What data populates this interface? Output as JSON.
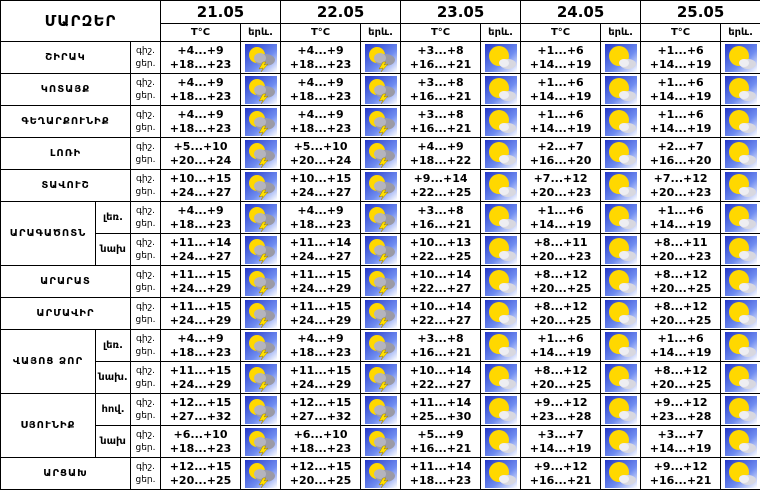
{
  "header": {
    "region_label": "ՄԱՐԶԵՐ",
    "dates": [
      "21.05",
      "22.05",
      "23.05",
      "24.05",
      "25.05"
    ],
    "temp_label": "T°C",
    "icon_label": "երև."
  },
  "period_labels": [
    "գիշ.",
    "ցեր."
  ],
  "regions": [
    {
      "name": "ՇԻՐԱԿ",
      "rows": [
        {
          "temps": [
            [
              "+4...+9",
              "+18...+23"
            ],
            [
              "+4...+9",
              "+18...+23"
            ],
            [
              "+3...+8",
              "+16...+21"
            ],
            [
              "+1...+6",
              "+14...+19"
            ],
            [
              "+1...+6",
              "+14...+19"
            ]
          ]
        }
      ]
    },
    {
      "name": "ԿՈՏԱՅՔ",
      "rows": [
        {
          "temps": [
            [
              "+4...+9",
              "+18...+23"
            ],
            [
              "+4...+9",
              "+18...+23"
            ],
            [
              "+3...+8",
              "+16...+21"
            ],
            [
              "+1...+6",
              "+14...+19"
            ],
            [
              "+1...+6",
              "+14...+19"
            ]
          ]
        }
      ]
    },
    {
      "name": "ԳԵՂԱՐՔՈՒՆԻՔ",
      "rows": [
        {
          "temps": [
            [
              "+4...+9",
              "+18...+23"
            ],
            [
              "+4...+9",
              "+18...+23"
            ],
            [
              "+3...+8",
              "+16...+21"
            ],
            [
              "+1...+6",
              "+14...+19"
            ],
            [
              "+1...+6",
              "+14...+19"
            ]
          ]
        }
      ]
    },
    {
      "name": "ԼՈՌԻ",
      "rows": [
        {
          "temps": [
            [
              "+5...+10",
              "+20...+24"
            ],
            [
              "+5...+10",
              "+20...+24"
            ],
            [
              "+4...+9",
              "+18...+22"
            ],
            [
              "+2...+7",
              "+16...+20"
            ],
            [
              "+2...+7",
              "+16...+20"
            ]
          ]
        }
      ]
    },
    {
      "name": "ՏԱՎՈՒՇ",
      "rows": [
        {
          "temps": [
            [
              "+10...+15",
              "+24...+27"
            ],
            [
              "+10...+15",
              "+24...+27"
            ],
            [
              "+9...+14",
              "+22...+25"
            ],
            [
              "+7...+12",
              "+20...+23"
            ],
            [
              "+7...+12",
              "+20...+23"
            ]
          ]
        }
      ]
    },
    {
      "name": "ԱՐԱԳԱԾՈՏՆ",
      "rows": [
        {
          "zone": "լեռ.",
          "temps": [
            [
              "+4...+9",
              "+18...+23"
            ],
            [
              "+4...+9",
              "+18...+23"
            ],
            [
              "+3...+8",
              "+16...+21"
            ],
            [
              "+1...+6",
              "+14...+19"
            ],
            [
              "+1...+6",
              "+14...+19"
            ]
          ]
        },
        {
          "zone": "նախ",
          "temps": [
            [
              "+11...+14",
              "+24...+27"
            ],
            [
              "+11...+14",
              "+24...+27"
            ],
            [
              "+10...+13",
              "+22...+25"
            ],
            [
              "+8...+11",
              "+20...+23"
            ],
            [
              "+8...+11",
              "+20...+23"
            ]
          ]
        }
      ]
    },
    {
      "name": "ԱՐԱՐԱՏ",
      "rows": [
        {
          "temps": [
            [
              "+11...+15",
              "+24...+29"
            ],
            [
              "+11...+15",
              "+24...+29"
            ],
            [
              "+10...+14",
              "+22...+27"
            ],
            [
              "+8...+12",
              "+20...+25"
            ],
            [
              "+8...+12",
              "+20...+25"
            ]
          ]
        }
      ]
    },
    {
      "name": "ԱՐՄԱՎԻՐ",
      "rows": [
        {
          "temps": [
            [
              "+11...+15",
              "+24...+29"
            ],
            [
              "+11...+15",
              "+24...+29"
            ],
            [
              "+10...+14",
              "+22...+27"
            ],
            [
              "+8...+12",
              "+20...+25"
            ],
            [
              "+8...+12",
              "+20...+25"
            ]
          ]
        }
      ]
    },
    {
      "name": "ՎԱՅՈՑ ՁՈՐ",
      "rows": [
        {
          "zone": "լեռ.",
          "temps": [
            [
              "+4...+9",
              "+18...+23"
            ],
            [
              "+4...+9",
              "+18...+23"
            ],
            [
              "+3...+8",
              "+16...+21"
            ],
            [
              "+1...+6",
              "+14...+19"
            ],
            [
              "+1...+6",
              "+14...+19"
            ]
          ]
        },
        {
          "zone": "նախ.",
          "temps": [
            [
              "+11...+15",
              "+24...+29"
            ],
            [
              "+11...+15",
              "+24...+29"
            ],
            [
              "+10...+14",
              "+22...+27"
            ],
            [
              "+8...+12",
              "+20...+25"
            ],
            [
              "+8...+12",
              "+20...+25"
            ]
          ]
        }
      ]
    },
    {
      "name": "ՍՅՈՒՆԻՔ",
      "rows": [
        {
          "zone": "հով.",
          "temps": [
            [
              "+12...+15",
              "+27...+32"
            ],
            [
              "+12...+15",
              "+27...+32"
            ],
            [
              "+11...+14",
              "+25...+30"
            ],
            [
              "+9...+12",
              "+23...+28"
            ],
            [
              "+9...+12",
              "+23...+28"
            ]
          ]
        },
        {
          "zone": "նախ",
          "temps": [
            [
              "+6...+10",
              "+18...+23"
            ],
            [
              "+6...+10",
              "+18...+23"
            ],
            [
              "+5...+9",
              "+16...+21"
            ],
            [
              "+3...+7",
              "+14...+19"
            ],
            [
              "+3...+7",
              "+14...+19"
            ]
          ]
        }
      ]
    },
    {
      "name": "ԱՐՑԱԽ",
      "rows": [
        {
          "temps": [
            [
              "+12...+15",
              "+20...+25"
            ],
            [
              "+12...+15",
              "+20...+25"
            ],
            [
              "+11...+14",
              "+18...+23"
            ],
            [
              "+9...+12",
              "+16...+21"
            ],
            [
              "+9...+12",
              "+16...+21"
            ]
          ]
        }
      ]
    }
  ]
}
